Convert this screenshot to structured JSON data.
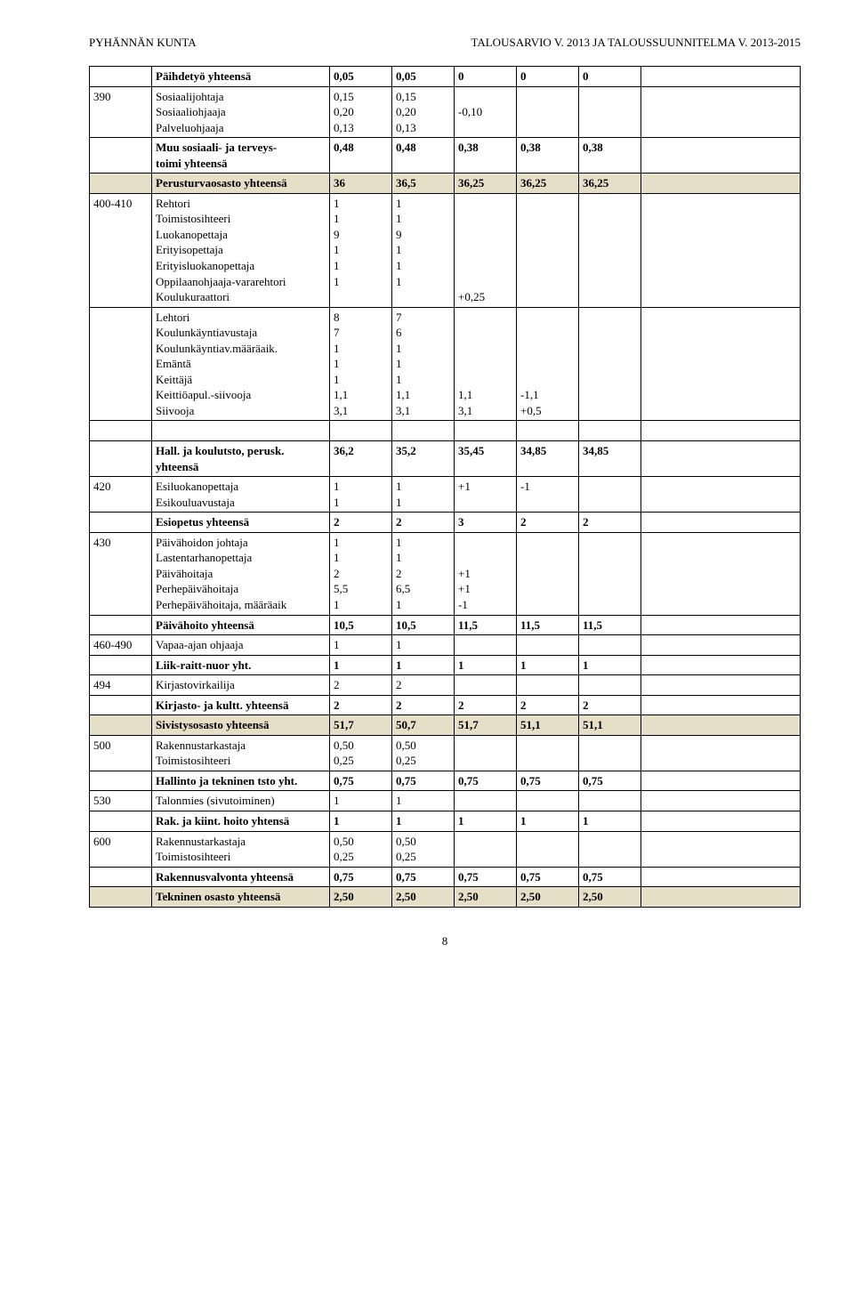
{
  "header": {
    "left": "PYHÄNNÄN KUNTA",
    "right": "TALOUSARVIO V. 2013 JA TALOUSSUUNNITELMA V. 2013-2015"
  },
  "pagenum": "8",
  "rows": [
    {
      "c0": "",
      "c1": [
        "Päihdetyö yhteensä"
      ],
      "c2": [
        "0,05"
      ],
      "c3": [
        "0,05"
      ],
      "c4": [
        "0"
      ],
      "c5": [
        "0"
      ],
      "c6": [
        "0"
      ],
      "c7": [
        ""
      ],
      "bold": true
    },
    {
      "c0": "390",
      "c1": [
        "Sosiaalijohtaja",
        "Sosiaaliohjaaja",
        "Palveluohjaaja"
      ],
      "c2": [
        "0,15",
        "0,20",
        "0,13"
      ],
      "c3": [
        "0,15",
        "0,20",
        "0,13"
      ],
      "c4": [
        "",
        "-0,10",
        ""
      ],
      "c5": [
        ""
      ],
      "c6": [
        ""
      ],
      "c7": [
        ""
      ]
    },
    {
      "c0": "",
      "c1": [
        "Muu sosiaali- ja terveys-",
        "toimi yhteensä"
      ],
      "c2": [
        "0,48"
      ],
      "c3": [
        "0,48"
      ],
      "c4": [
        "0,38"
      ],
      "c5": [
        "0,38"
      ],
      "c6": [
        "0,38"
      ],
      "c7": [
        ""
      ],
      "bold": true
    },
    {
      "c0": "",
      "c1": [
        "Perusturvaosasto yhteensä"
      ],
      "c2": [
        "36"
      ],
      "c3": [
        "36,5"
      ],
      "c4": [
        "36,25"
      ],
      "c5": [
        "36,25"
      ],
      "c6": [
        "36,25"
      ],
      "c7": [
        ""
      ],
      "bold": true,
      "shade": true
    },
    {
      "c0": "400-410",
      "c1": [
        "Rehtori",
        "Toimistosihteeri",
        "Luokanopettaja",
        "Erityisopettaja",
        "Erityisluokanopettaja",
        "Oppilaanohjaaja-vararehtori",
        "Koulukuraattori"
      ],
      "c2": [
        "1",
        "1",
        "9",
        "1",
        "1",
        "1",
        ""
      ],
      "c3": [
        "1",
        "1",
        "9",
        "1",
        "1",
        "1",
        ""
      ],
      "c4": [
        "",
        "",
        "",
        "",
        "",
        "",
        "+0,25"
      ],
      "c5": [
        ""
      ],
      "c6": [
        ""
      ],
      "c7": [
        ""
      ]
    },
    {
      "c0": "",
      "c1": [
        "Lehtori",
        "Koulunkäyntiavustaja",
        "Koulunkäyntiav.määräaik.",
        "Emäntä",
        "Keittäjä",
        "Keittiöapul.-siivooja",
        "Siivooja"
      ],
      "c2": [
        "8",
        "7",
        "1",
        "1",
        "1",
        "1,1",
        "3,1"
      ],
      "c3": [
        "7",
        "6",
        "1",
        "1",
        "1",
        "1,1",
        "3,1"
      ],
      "c4": [
        "",
        "",
        "",
        "",
        "",
        "1,1",
        "3,1"
      ],
      "c5": [
        "",
        "",
        "",
        "",
        "",
        "-1,1",
        "+0,5"
      ],
      "c6": [
        ""
      ],
      "c7": [
        ""
      ]
    },
    {
      "blank": true
    },
    {
      "c0": "",
      "c1": [
        "Hall. ja koulutsto, perusk.",
        "yhteensä"
      ],
      "c2": [
        "36,2"
      ],
      "c3": [
        "35,2"
      ],
      "c4": [
        "35,45"
      ],
      "c5": [
        "34,85"
      ],
      "c6": [
        "34,85"
      ],
      "c7": [
        ""
      ],
      "bold": true
    },
    {
      "c0": "420",
      "c1": [
        "Esiluokanopettaja",
        "Esikouluavustaja"
      ],
      "c2": [
        "1",
        "1"
      ],
      "c3": [
        "1",
        "1"
      ],
      "c4": [
        "+1",
        ""
      ],
      "c5": [
        "-1",
        ""
      ],
      "c6": [
        ""
      ],
      "c7": [
        ""
      ]
    },
    {
      "c0": "",
      "c1": [
        "Esiopetus yhteensä"
      ],
      "c2": [
        "2"
      ],
      "c3": [
        "2"
      ],
      "c4": [
        "3"
      ],
      "c5": [
        "2"
      ],
      "c6": [
        "2"
      ],
      "c7": [
        ""
      ],
      "bold": true
    },
    {
      "c0": "430",
      "c1": [
        "Päivähoidon johtaja",
        "Lastentarhanopettaja",
        "Päivähoitaja",
        "Perhepäivähoitaja",
        "Perhepäivähoitaja, määräaik"
      ],
      "c2": [
        "1",
        "1",
        "2",
        "5,5",
        "1"
      ],
      "c3": [
        "1",
        "1",
        "2",
        "6,5",
        "1"
      ],
      "c4": [
        "",
        "",
        "+1",
        "+1",
        "-1"
      ],
      "c5": [
        ""
      ],
      "c6": [
        ""
      ],
      "c7": [
        ""
      ]
    },
    {
      "c0": "",
      "c1": [
        "Päivähoito yhteensä"
      ],
      "c2": [
        "10,5"
      ],
      "c3": [
        "10,5"
      ],
      "c4": [
        "11,5"
      ],
      "c5": [
        "11,5"
      ],
      "c6": [
        "11,5"
      ],
      "c7": [
        ""
      ],
      "bold": true
    },
    {
      "c0": "460-490",
      "c1": [
        "Vapaa-ajan ohjaaja"
      ],
      "c2": [
        "1"
      ],
      "c3": [
        "1"
      ],
      "c4": [
        ""
      ],
      "c5": [
        ""
      ],
      "c6": [
        ""
      ],
      "c7": [
        ""
      ]
    },
    {
      "c0": "",
      "c1": [
        "Liik-raitt-nuor yht."
      ],
      "c2": [
        "1"
      ],
      "c3": [
        "1"
      ],
      "c4": [
        "1"
      ],
      "c5": [
        "1"
      ],
      "c6": [
        "1"
      ],
      "c7": [
        ""
      ],
      "bold": true
    },
    {
      "c0": "494",
      "c1": [
        "Kirjastovirkailija"
      ],
      "c2": [
        "2"
      ],
      "c3": [
        "2"
      ],
      "c4": [
        ""
      ],
      "c5": [
        ""
      ],
      "c6": [
        ""
      ],
      "c7": [
        ""
      ]
    },
    {
      "c0": "",
      "c1": [
        "Kirjasto- ja kultt. yhteensä"
      ],
      "c2": [
        "2"
      ],
      "c3": [
        "2"
      ],
      "c4": [
        "2"
      ],
      "c5": [
        "2"
      ],
      "c6": [
        "2"
      ],
      "c7": [
        ""
      ],
      "bold": true
    },
    {
      "c0": "",
      "c1": [
        "Sivistysosasto yhteensä"
      ],
      "c2": [
        "51,7"
      ],
      "c3": [
        "50,7"
      ],
      "c4": [
        "51,7"
      ],
      "c5": [
        "51,1"
      ],
      "c6": [
        "51,1"
      ],
      "c7": [
        ""
      ],
      "bold": true,
      "shade": true
    },
    {
      "c0": "500",
      "c1": [
        "Rakennustarkastaja",
        "Toimistosihteeri"
      ],
      "c2": [
        "0,50",
        "0,25"
      ],
      "c3": [
        "0,50",
        "0,25"
      ],
      "c4": [
        ""
      ],
      "c5": [
        ""
      ],
      "c6": [
        ""
      ],
      "c7": [
        ""
      ]
    },
    {
      "c0": "",
      "c1": [
        "Hallinto ja tekninen tsto yht."
      ],
      "c2": [
        "0,75"
      ],
      "c3": [
        "0,75"
      ],
      "c4": [
        "0,75"
      ],
      "c5": [
        "0,75"
      ],
      "c6": [
        "0,75"
      ],
      "c7": [
        ""
      ],
      "bold": true
    },
    {
      "c0": "530",
      "c1": [
        "Talonmies (sivutoiminen)"
      ],
      "c2": [
        "1"
      ],
      "c3": [
        "1"
      ],
      "c4": [
        ""
      ],
      "c5": [
        ""
      ],
      "c6": [
        ""
      ],
      "c7": [
        ""
      ]
    },
    {
      "c0": "",
      "c1": [
        "Rak. ja kiint. hoito yhtensä"
      ],
      "c2": [
        "1"
      ],
      "c3": [
        "1"
      ],
      "c4": [
        "1"
      ],
      "c5": [
        "1"
      ],
      "c6": [
        "1"
      ],
      "c7": [
        ""
      ],
      "bold": true
    },
    {
      "c0": "600",
      "c1": [
        "Rakennustarkastaja",
        "Toimistosihteeri"
      ],
      "c2": [
        "0,50",
        "0,25"
      ],
      "c3": [
        "0,50",
        "0,25"
      ],
      "c4": [
        ""
      ],
      "c5": [
        ""
      ],
      "c6": [
        ""
      ],
      "c7": [
        ""
      ]
    },
    {
      "c0": "",
      "c1": [
        "Rakennusvalvonta yhteensä"
      ],
      "c2": [
        "0,75"
      ],
      "c3": [
        "0,75"
      ],
      "c4": [
        "0,75"
      ],
      "c5": [
        "0,75"
      ],
      "c6": [
        "0,75"
      ],
      "c7": [
        ""
      ],
      "bold": true
    },
    {
      "c0": "",
      "c1": [
        "Tekninen osasto yhteensä"
      ],
      "c2": [
        "2,50"
      ],
      "c3": [
        "2,50"
      ],
      "c4": [
        "2,50"
      ],
      "c5": [
        "2,50"
      ],
      "c6": [
        "2,50"
      ],
      "c7": [
        ""
      ],
      "bold": true,
      "shade": true
    }
  ]
}
